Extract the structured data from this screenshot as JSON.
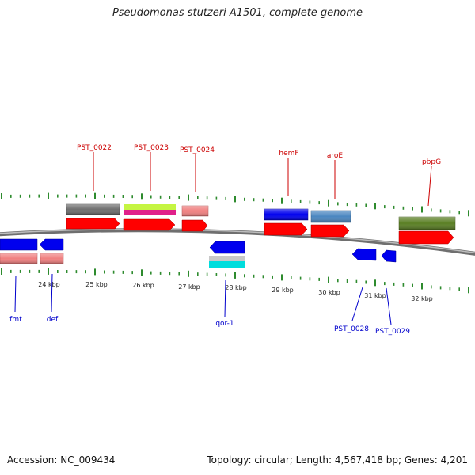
{
  "title": "Pseudomonas stutzeri A1501, complete genome",
  "footer": {
    "accession": "Accession: NC_009434",
    "summary": "Topology: circular; Length: 4,567,418 bp; Genes: 4,201"
  },
  "colors": {
    "forward_label": "#cc0000",
    "reverse_label": "#0000cc",
    "tick": "#2e8b2e",
    "backbone": "#8a8a8a"
  },
  "scale_labels": [
    "24 kbp",
    "25 kbp",
    "26 kbp",
    "27 kbp",
    "28 kbp",
    "29 kbp",
    "30 kbp",
    "31 kbp",
    "32 kbp"
  ],
  "genes_forward": [
    {
      "name": "PST_0022",
      "cds_color": "#ff0000",
      "feature_color": "#6e6e6e"
    },
    {
      "name": "PST_0023",
      "cds_color": "#ff0000",
      "feature_color": "#c5f542",
      "feature_color_2": "#e0208a"
    },
    {
      "name": "PST_0024",
      "cds_color": "#ff0000",
      "feature_color": "#f08080"
    },
    {
      "name": "hemF",
      "cds_color": "#ff0000",
      "feature_color": "#0000ee"
    },
    {
      "name": "aroE",
      "cds_color": "#ff0000",
      "feature_color": "#4a86c0"
    },
    {
      "name": "pbpG",
      "cds_color": "#ff0000",
      "feature_color": "#5a7f24"
    }
  ],
  "genes_reverse": [
    {
      "name": "fmt",
      "cds_color": "#0000ee",
      "feature_color": "#f08080"
    },
    {
      "name": "def",
      "cds_color": "#0000ee",
      "feature_color": "#f08080"
    },
    {
      "name": "qor-1",
      "cds_color": "#0000ee",
      "feature_color": "#00dddd"
    },
    {
      "name": "PST_0028",
      "cds_color": "#0000ee"
    },
    {
      "name": "PST_0029",
      "cds_color": "#0000ee"
    }
  ]
}
